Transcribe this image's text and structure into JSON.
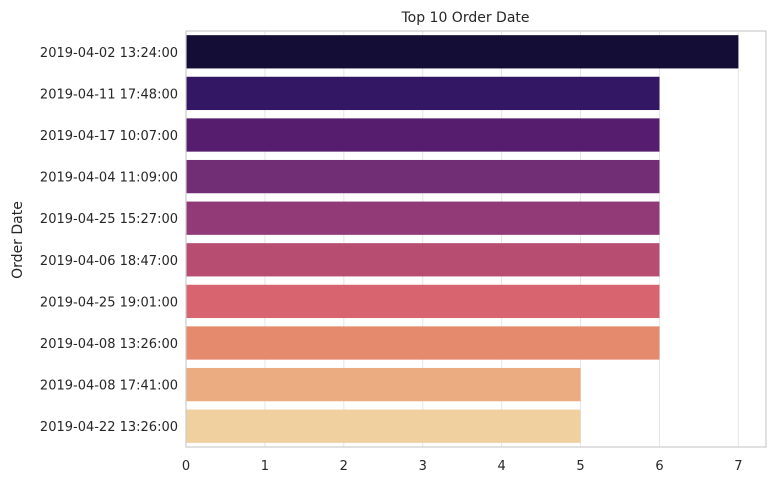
{
  "chart_data": {
    "type": "bar",
    "orientation": "horizontal",
    "title": "Top 10 Order Date",
    "xlabel": "",
    "ylabel": "Order Date",
    "categories": [
      "2019-04-02 13:24:00",
      "2019-04-11 17:48:00",
      "2019-04-17 10:07:00",
      "2019-04-04 11:09:00",
      "2019-04-25 15:27:00",
      "2019-04-06 18:47:00",
      "2019-04-25 19:01:00",
      "2019-04-08 13:26:00",
      "2019-04-08 17:41:00",
      "2019-04-22 13:26:00"
    ],
    "values": [
      7,
      6,
      6,
      6,
      6,
      6,
      6,
      6,
      5,
      5
    ],
    "colors": [
      "#140e36",
      "#341764",
      "#561d6e",
      "#722e74",
      "#913a77",
      "#b74e71",
      "#d86470",
      "#e68a6d",
      "#ecac82",
      "#f0d09f"
    ],
    "xlim": [
      0,
      7.35
    ],
    "xticks": [
      0,
      1,
      2,
      3,
      4,
      5,
      6,
      7
    ],
    "grid": true,
    "legend": "none"
  }
}
